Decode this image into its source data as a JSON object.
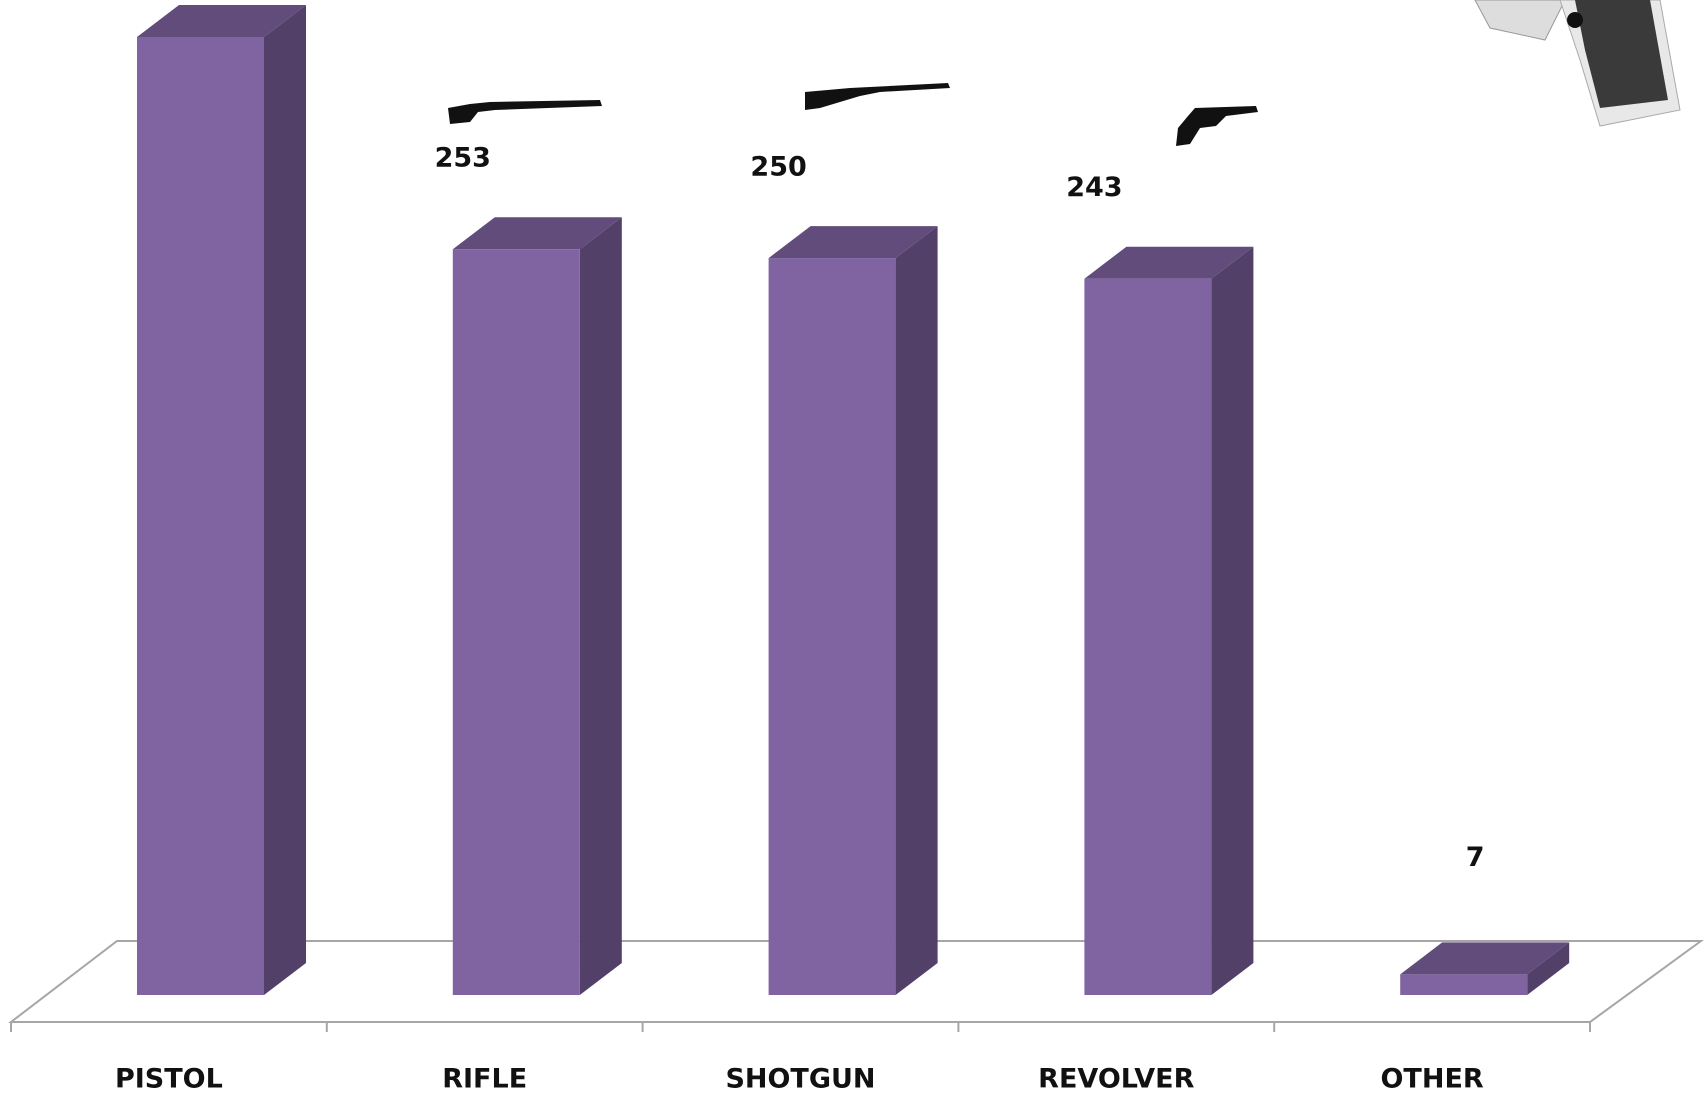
{
  "chart_data": {
    "type": "bar3d",
    "categories": [
      "PISTOL",
      "RIFLE",
      "SHOTGUN",
      "REVOLVER",
      "OTHER"
    ],
    "values": [
      325,
      253,
      250,
      243,
      7
    ],
    "value_labels": [
      null,
      "253",
      "250",
      "243",
      "7"
    ],
    "color": "#8064a2"
  }
}
